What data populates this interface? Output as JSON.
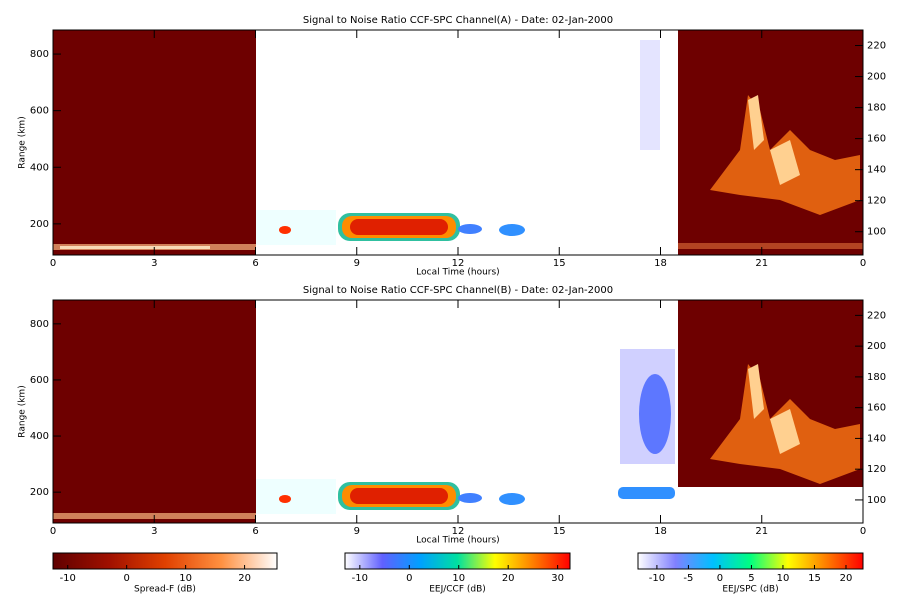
{
  "chart_data": [
    {
      "type": "heatmap",
      "title": "Signal to Noise Ratio CCF-SPC Channel(A) - Date: 02-Jan-2000",
      "xlabel": "Local Time (hours)",
      "ylabel": "Range (km)",
      "xlim": [
        0,
        24
      ],
      "xticks": [
        0,
        3,
        6,
        9,
        12,
        15,
        18,
        21,
        {
          "value": 24,
          "label": "0"
        }
      ],
      "ylim": [
        90,
        885
      ],
      "yticks": [
        200,
        400,
        600,
        800
      ],
      "y2lim": [
        85,
        230
      ],
      "y2ticks": [
        100,
        120,
        140,
        160,
        180,
        200,
        220
      ]
    },
    {
      "type": "heatmap",
      "title": "Signal to Noise Ratio CCF-SPC Channel(B) - Date: 02-Jan-2000",
      "xlabel": "Local Time (hours)",
      "ylabel": "Range (km)",
      "xlim": [
        0,
        24
      ],
      "xticks": [
        0,
        3,
        6,
        9,
        12,
        15,
        18,
        21,
        {
          "value": 24,
          "label": "0"
        }
      ],
      "ylim": [
        90,
        885
      ],
      "yticks": [
        200,
        400,
        600,
        800
      ],
      "y2lim": [
        85,
        230
      ],
      "y2ticks": [
        100,
        120,
        140,
        160,
        180,
        200,
        220
      ]
    }
  ],
  "colorbars": [
    {
      "label": "Spread-F (dB)",
      "lim": [
        -12.5,
        25.5
      ],
      "ticks": [
        -10,
        0,
        10,
        20
      ],
      "colors": [
        "#600000",
        "#a01000",
        "#e04000",
        "#ff9040",
        "#ffffff"
      ]
    },
    {
      "label": "EEJ/CCF (dB)",
      "lim": [
        -13,
        32.5
      ],
      "ticks": [
        -10,
        0,
        10,
        20,
        30
      ],
      "colors": [
        "#ffffff",
        "#6060ff",
        "#00a0ff",
        "#00e0a0",
        "#ffff00",
        "#ff8000",
        "#ff0000"
      ]
    },
    {
      "label": "EEJ/SPC (dB)",
      "lim": [
        -13,
        22.7
      ],
      "ticks": [
        -10,
        -5,
        0,
        5,
        10,
        15,
        20
      ],
      "colors": [
        "#ffffff",
        "#8080ff",
        "#00c0ff",
        "#00ff80",
        "#ffff00",
        "#ff8000",
        "#ff0000"
      ]
    }
  ]
}
